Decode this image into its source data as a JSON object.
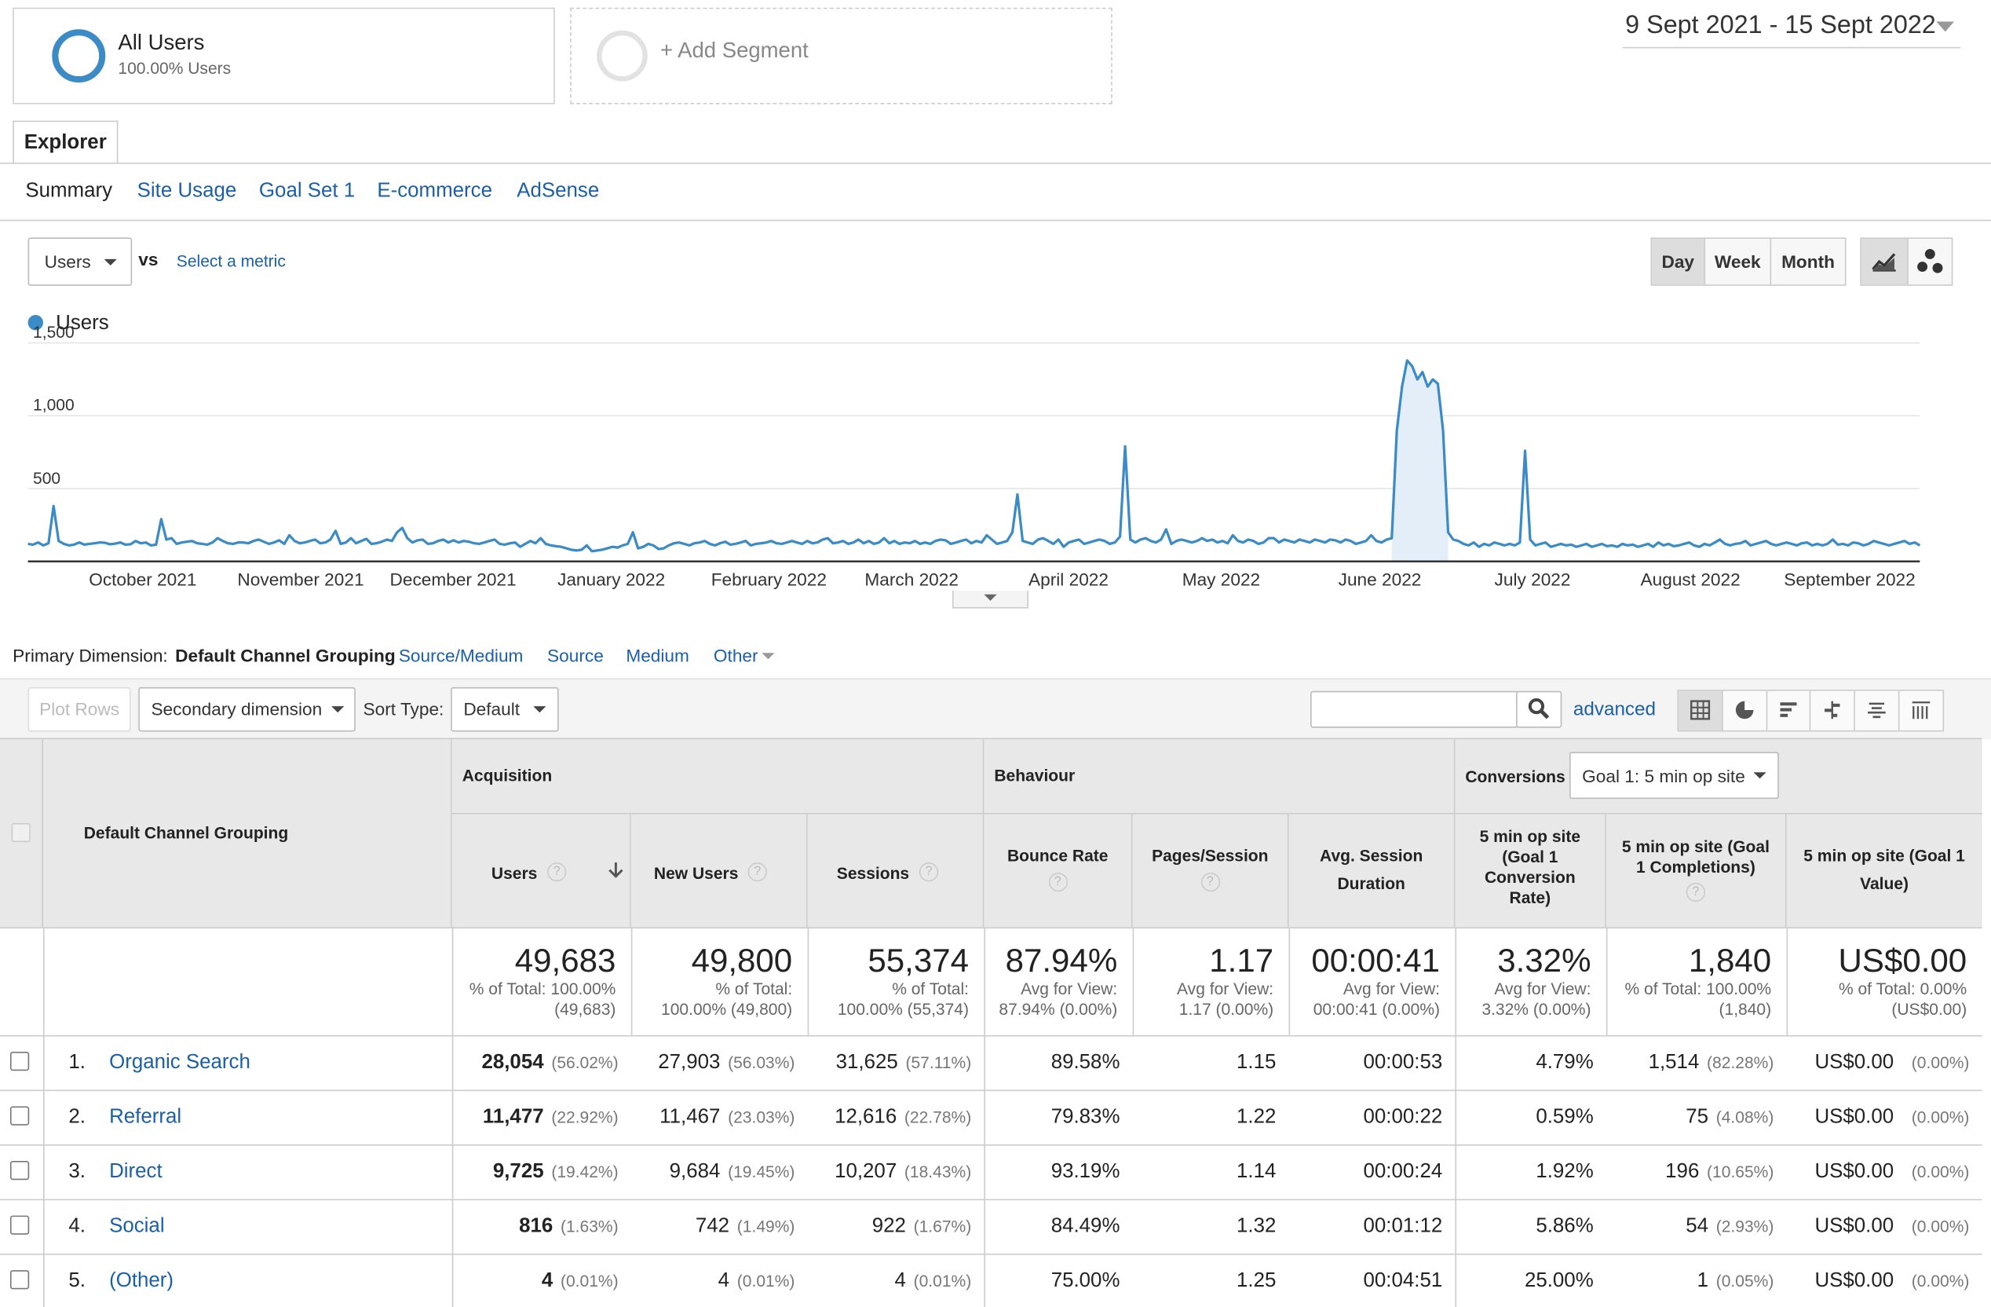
{
  "segments": {
    "all_users": {
      "title": "All Users",
      "subtitle": "100.00% Users"
    },
    "add_segment": "+ Add Segment"
  },
  "date_range": "9 Sept 2021 - 15 Sept 2022",
  "tabs": {
    "explorer": "Explorer"
  },
  "subtabs": [
    "Summary",
    "Site Usage",
    "Goal Set 1",
    "E-commerce",
    "AdSense"
  ],
  "metric": {
    "selected": "Users",
    "vs": "vs",
    "select_metric": "Select a metric"
  },
  "granularity": [
    "Day",
    "Week",
    "Month"
  ],
  "colors": {
    "series": "#3a8bc6",
    "link": "#1a5fa8"
  },
  "chart_data": {
    "type": "line",
    "series": [
      {
        "name": "Users"
      }
    ],
    "ylim": [
      0,
      1500
    ],
    "yticks": [
      "1,500",
      "1,000",
      "500"
    ],
    "xticks": [
      "October 2021",
      "November 2021",
      "December 2021",
      "January 2022",
      "February 2022",
      "March 2022",
      "April 2022",
      "May 2022",
      "June 2022",
      "July 2022",
      "August 2022",
      "September 2022"
    ],
    "grid": true,
    "legend": "top-left",
    "start": "2021-09-09",
    "end": "2022-09-15",
    "values": [
      120,
      115,
      130,
      110,
      125,
      380,
      140,
      120,
      110,
      115,
      130,
      115,
      120,
      125,
      130,
      128,
      118,
      122,
      130,
      115,
      118,
      140,
      125,
      130,
      110,
      115,
      290,
      150,
      160,
      120,
      130,
      135,
      140,
      125,
      120,
      115,
      130,
      160,
      140,
      125,
      120,
      130,
      130,
      125,
      140,
      150,
      135,
      120,
      130,
      145,
      120,
      180,
      140,
      125,
      130,
      140,
      150,
      125,
      130,
      150,
      210,
      120,
      130,
      160,
      125,
      140,
      155,
      120,
      125,
      135,
      150,
      140,
      200,
      230,
      160,
      130,
      145,
      150,
      120,
      125,
      140,
      150,
      130,
      145,
      130,
      140,
      135,
      125,
      120,
      130,
      140,
      150,
      120,
      115,
      125,
      130,
      100,
      120,
      140,
      125,
      160,
      120,
      110,
      105,
      100,
      90,
      80,
      75,
      80,
      110,
      70,
      75,
      80,
      90,
      100,
      95,
      110,
      120,
      200,
      90,
      100,
      120,
      110,
      85,
      90,
      110,
      125,
      130,
      120,
      110,
      125,
      130,
      140,
      120,
      110,
      125,
      135,
      115,
      120,
      130,
      140,
      110,
      120,
      125,
      130,
      140,
      125,
      120,
      130,
      140,
      130,
      120,
      140,
      125,
      130,
      150,
      160,
      125,
      130,
      140,
      120,
      130,
      150,
      125,
      140,
      120,
      130,
      160,
      125,
      140,
      120,
      130,
      125,
      140,
      120,
      130,
      120,
      140,
      150,
      145,
      120,
      130,
      140,
      150,
      125,
      140,
      130,
      180,
      150,
      120,
      130,
      140,
      200,
      460,
      140,
      130,
      120,
      150,
      160,
      140,
      120,
      150,
      100,
      130,
      140,
      150,
      120,
      130,
      140,
      150,
      140,
      120,
      130,
      170,
      790,
      150,
      130,
      150,
      160,
      140,
      130,
      150,
      220,
      120,
      140,
      150,
      140,
      130,
      140,
      160,
      140,
      150,
      130,
      140,
      125,
      180,
      140,
      130,
      150,
      140,
      120,
      130,
      160,
      160,
      130,
      150,
      140,
      130,
      150,
      140,
      130,
      150,
      140,
      130,
      150,
      145,
      130,
      150,
      140,
      120,
      130,
      140,
      180,
      140,
      130,
      150,
      160,
      900,
      1200,
      1380,
      1340,
      1250,
      1300,
      1200,
      1250,
      1220,
      900,
      200,
      150,
      140,
      120,
      110,
      130,
      100,
      120,
      110,
      130,
      120,
      110,
      120,
      110,
      130,
      760,
      150,
      110,
      120,
      130,
      100,
      110,
      120,
      110,
      115,
      100,
      110,
      120,
      100,
      110,
      120,
      105,
      110,
      100,
      120,
      110,
      115,
      100,
      110,
      120,
      100,
      130,
      110,
      120,
      105,
      110,
      120,
      130,
      110,
      100,
      120,
      110,
      130,
      150,
      120,
      110,
      120,
      125,
      140,
      110,
      120,
      130,
      140,
      120,
      110,
      120,
      130,
      120,
      110,
      125,
      130,
      110,
      120,
      110,
      120,
      150,
      115,
      120,
      110,
      130,
      125,
      110,
      120,
      140,
      130,
      120,
      110,
      120,
      130,
      140,
      120,
      130,
      110
    ]
  },
  "primary_dimension": {
    "label": "Primary Dimension:",
    "current": "Default Channel Grouping",
    "options": [
      "Source/Medium",
      "Source",
      "Medium",
      "Other"
    ]
  },
  "toolbar": {
    "plot_rows": "Plot Rows",
    "secondary_dimension": "Secondary dimension",
    "sort_type_label": "Sort Type:",
    "sort_type": "Default",
    "advanced": "advanced"
  },
  "table": {
    "dimension_header": "Default Channel Grouping",
    "groups": {
      "acquisition": "Acquisition",
      "behaviour": "Behaviour",
      "conversions": "Conversions"
    },
    "goal_select": "Goal 1: 5 min op site",
    "columns": [
      "Users",
      "New Users",
      "Sessions",
      "Bounce Rate",
      "Pages/Session",
      "Avg. Session Duration",
      "5 min op site (Goal 1 Conversion Rate)",
      "5 min op site (Goal 1 Completions)",
      "5 min op site (Goal 1 Value)"
    ],
    "totals": [
      {
        "value": "49,683",
        "sub1": "% of Total: 100.00%",
        "sub2": "(49,683)"
      },
      {
        "value": "49,800",
        "sub1": "% of Total:",
        "sub2": "100.00% (49,800)"
      },
      {
        "value": "55,374",
        "sub1": "% of Total:",
        "sub2": "100.00% (55,374)"
      },
      {
        "value": "87.94%",
        "sub1": "Avg for View:",
        "sub2": "87.94% (0.00%)"
      },
      {
        "value": "1.17",
        "sub1": "Avg for View:",
        "sub2": "1.17 (0.00%)"
      },
      {
        "value": "00:00:41",
        "sub1": "Avg for View:",
        "sub2": "00:00:41 (0.00%)"
      },
      {
        "value": "3.32%",
        "sub1": "Avg for View:",
        "sub2": "3.32% (0.00%)"
      },
      {
        "value": "1,840",
        "sub1": "% of Total: 100.00%",
        "sub2": "(1,840)"
      },
      {
        "value": "US$0.00",
        "sub1": "% of Total: 0.00%",
        "sub2": "(US$0.00)"
      }
    ],
    "rows": [
      {
        "num": "1.",
        "name": "Organic Search",
        "users": "28,054",
        "users_pct": "(56.02%)",
        "new_users": "27,903",
        "new_users_pct": "(56.03%)",
        "sessions": "31,625",
        "sessions_pct": "(57.11%)",
        "bounce": "89.58%",
        "pages": "1.15",
        "duration": "00:00:53",
        "conv_rate": "4.79%",
        "completions": "1,514",
        "completions_pct": "(82.28%)",
        "value": "US$0.00",
        "value_pct": "(0.00%)"
      },
      {
        "num": "2.",
        "name": "Referral",
        "users": "11,477",
        "users_pct": "(22.92%)",
        "new_users": "11,467",
        "new_users_pct": "(23.03%)",
        "sessions": "12,616",
        "sessions_pct": "(22.78%)",
        "bounce": "79.83%",
        "pages": "1.22",
        "duration": "00:00:22",
        "conv_rate": "0.59%",
        "completions": "75",
        "completions_pct": "(4.08%)",
        "value": "US$0.00",
        "value_pct": "(0.00%)"
      },
      {
        "num": "3.",
        "name": "Direct",
        "users": "9,725",
        "users_pct": "(19.42%)",
        "new_users": "9,684",
        "new_users_pct": "(19.45%)",
        "sessions": "10,207",
        "sessions_pct": "(18.43%)",
        "bounce": "93.19%",
        "pages": "1.14",
        "duration": "00:00:24",
        "conv_rate": "1.92%",
        "completions": "196",
        "completions_pct": "(10.65%)",
        "value": "US$0.00",
        "value_pct": "(0.00%)"
      },
      {
        "num": "4.",
        "name": "Social",
        "users": "816",
        "users_pct": "(1.63%)",
        "new_users": "742",
        "new_users_pct": "(1.49%)",
        "sessions": "922",
        "sessions_pct": "(1.67%)",
        "bounce": "84.49%",
        "pages": "1.32",
        "duration": "00:01:12",
        "conv_rate": "5.86%",
        "completions": "54",
        "completions_pct": "(2.93%)",
        "value": "US$0.00",
        "value_pct": "(0.00%)"
      },
      {
        "num": "5.",
        "name": "(Other)",
        "users": "4",
        "users_pct": "(0.01%)",
        "new_users": "4",
        "new_users_pct": "(0.01%)",
        "sessions": "4",
        "sessions_pct": "(0.01%)",
        "bounce": "75.00%",
        "pages": "1.25",
        "duration": "00:04:51",
        "conv_rate": "25.00%",
        "completions": "1",
        "completions_pct": "(0.05%)",
        "value": "US$0.00",
        "value_pct": "(0.00%)"
      }
    ]
  }
}
